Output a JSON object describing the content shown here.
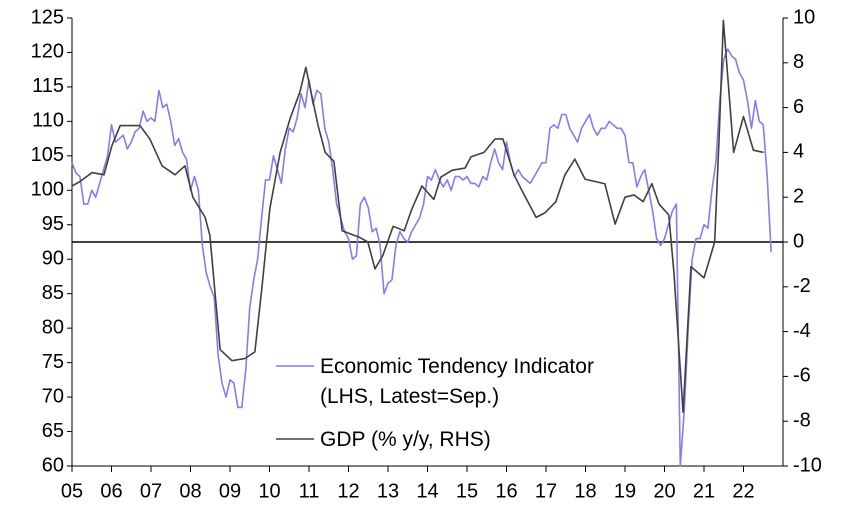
{
  "chart_data": {
    "type": "line",
    "xlim": [
      2005,
      2023
    ],
    "xticks": [
      {
        "value": 2005,
        "label": "05"
      },
      {
        "value": 2006,
        "label": "06"
      },
      {
        "value": 2007,
        "label": "07"
      },
      {
        "value": 2008,
        "label": "08"
      },
      {
        "value": 2009,
        "label": "09"
      },
      {
        "value": 2010,
        "label": "10"
      },
      {
        "value": 2011,
        "label": "11"
      },
      {
        "value": 2012,
        "label": "12"
      },
      {
        "value": 2013,
        "label": "13"
      },
      {
        "value": 2014,
        "label": "14"
      },
      {
        "value": 2015,
        "label": "15"
      },
      {
        "value": 2016,
        "label": "16"
      },
      {
        "value": 2017,
        "label": "17"
      },
      {
        "value": 2018,
        "label": "18"
      },
      {
        "value": 2019,
        "label": "19"
      },
      {
        "value": 2020,
        "label": "20"
      },
      {
        "value": 2021,
        "label": "21"
      },
      {
        "value": 2022,
        "label": "22"
      }
    ],
    "ylim": [
      60,
      125
    ],
    "yticks": [
      60,
      65,
      70,
      75,
      80,
      85,
      90,
      95,
      100,
      105,
      110,
      115,
      120,
      125
    ],
    "y2lim": [
      -10,
      10
    ],
    "y2ticks": [
      -10,
      -8,
      -6,
      -4,
      -2,
      0,
      2,
      4,
      6,
      8,
      10
    ],
    "series": [
      {
        "name": "Economic Tendency Indicator (LHS, Latest=Sep.)",
        "color": "#7f7ff0",
        "x": [
          2005,
          2005.1,
          2005.2,
          2005.3,
          2005.4,
          2005.5,
          2005.6,
          2005.7,
          2005.8,
          2005.9,
          2006,
          2006.1,
          2006.2,
          2006.3,
          2006.4,
          2006.5,
          2006.6,
          2006.7,
          2006.8,
          2006.9,
          2007,
          2007.1,
          2007.2,
          2007.3,
          2007.4,
          2007.5,
          2007.6,
          2007.7,
          2007.8,
          2007.9,
          2008,
          2008.1,
          2008.2,
          2008.3,
          2008.4,
          2008.5,
          2008.6,
          2008.7,
          2008.8,
          2008.9,
          2009,
          2009.1,
          2009.2,
          2009.3,
          2009.4,
          2009.5,
          2009.6,
          2009.7,
          2009.8,
          2009.9,
          2010,
          2010.1,
          2010.2,
          2010.3,
          2010.4,
          2010.5,
          2010.6,
          2010.7,
          2010.8,
          2010.9,
          2011,
          2011.1,
          2011.2,
          2011.3,
          2011.4,
          2011.5,
          2011.6,
          2011.7,
          2011.8,
          2011.9,
          2012,
          2012.1,
          2012.2,
          2012.3,
          2012.4,
          2012.5,
          2012.6,
          2012.7,
          2012.8,
          2012.9,
          2013,
          2013.1,
          2013.2,
          2013.3,
          2013.4,
          2013.5,
          2013.6,
          2013.7,
          2013.8,
          2013.9,
          2014,
          2014.1,
          2014.2,
          2014.3,
          2014.4,
          2014.5,
          2014.6,
          2014.7,
          2014.8,
          2014.9,
          2015,
          2015.1,
          2015.2,
          2015.3,
          2015.4,
          2015.5,
          2015.6,
          2015.7,
          2015.8,
          2015.9,
          2016,
          2016.1,
          2016.2,
          2016.3,
          2016.4,
          2016.5,
          2016.6,
          2016.7,
          2016.8,
          2016.9,
          2017,
          2017.1,
          2017.2,
          2017.3,
          2017.4,
          2017.5,
          2017.6,
          2017.7,
          2017.8,
          2017.9,
          2018,
          2018.1,
          2018.2,
          2018.3,
          2018.4,
          2018.5,
          2018.6,
          2018.7,
          2018.8,
          2018.9,
          2019,
          2019.1,
          2019.2,
          2019.3,
          2019.4,
          2019.5,
          2019.6,
          2019.7,
          2019.8,
          2019.9,
          2020,
          2020.1,
          2020.2,
          2020.3,
          2020.4,
          2020.5,
          2020.6,
          2020.7,
          2020.8,
          2020.9,
          2021,
          2021.1,
          2021.2,
          2021.3,
          2021.4,
          2021.5,
          2021.6,
          2021.7,
          2021.8,
          2021.9,
          2022,
          2022.1,
          2022.2,
          2022.3,
          2022.4,
          2022.5,
          2022.6,
          2022.7
        ],
        "values": [
          104,
          102.5,
          102,
          98,
          98,
          100,
          99,
          101,
          103,
          105,
          109.5,
          107,
          107.5,
          108,
          106,
          107,
          108.5,
          109,
          111.5,
          110,
          110.5,
          110,
          114.5,
          112,
          112.5,
          110,
          106.5,
          107.5,
          105.5,
          104.5,
          100,
          102,
          100,
          92,
          88,
          86,
          84.5,
          76,
          72,
          70,
          72.5,
          72,
          68.5,
          68.5,
          74,
          83,
          87,
          90,
          96,
          101.5,
          101.5,
          105,
          103,
          101,
          106,
          109,
          108.5,
          110.5,
          114,
          112,
          116,
          112.5,
          114.5,
          114,
          109,
          107,
          103,
          98,
          96,
          94,
          93,
          90,
          90.5,
          98,
          99,
          97.5,
          94,
          94.5,
          92,
          85,
          86.5,
          87,
          92,
          94,
          93,
          92.5,
          94,
          95,
          96,
          98,
          102,
          101.5,
          103,
          101.5,
          100.5,
          101.5,
          100,
          102,
          102,
          101.5,
          102,
          101,
          101,
          100.5,
          102,
          101.5,
          104,
          106,
          104,
          103,
          107,
          104,
          102,
          103,
          102,
          101.5,
          101,
          102,
          103,
          104,
          104,
          109,
          109.5,
          109,
          111,
          111,
          109,
          108,
          107,
          109,
          110,
          111,
          109,
          108,
          109,
          109,
          110,
          109.5,
          109,
          109,
          108,
          104,
          104,
          100.5,
          102,
          103,
          100,
          97,
          93,
          92,
          93,
          95,
          97,
          98,
          60,
          68,
          80,
          90,
          93,
          93,
          95,
          94.5,
          100,
          104,
          113,
          119,
          120.5,
          119.5,
          119,
          117,
          116,
          113,
          109,
          113,
          110,
          109.5,
          102,
          91
        ]
      },
      {
        "name": "GDP (% y/y, RHS)",
        "color": "#404040",
        "axis": "y2",
        "x": [
          2005,
          2005.2,
          2005.51,
          2005.81,
          2006.01,
          2006.22,
          2006.72,
          2006.97,
          2007.28,
          2007.61,
          2007.86,
          2008.06,
          2008.37,
          2008.49,
          2008.75,
          2009.05,
          2009.38,
          2009.63,
          2009.81,
          2010.01,
          2010.27,
          2010.52,
          2010.77,
          2010.92,
          2011.23,
          2011.41,
          2011.63,
          2011.84,
          2012.29,
          2012.49,
          2012.67,
          2012.87,
          2013.13,
          2013.41,
          2013.61,
          2013.86,
          2014.16,
          2014.34,
          2014.62,
          2014.95,
          2015.1,
          2015.43,
          2015.71,
          2015.91,
          2016.19,
          2016.39,
          2016.75,
          2016.97,
          2017.25,
          2017.48,
          2017.73,
          2017.99,
          2018.24,
          2018.49,
          2018.75,
          2019,
          2019.23,
          2019.46,
          2019.68,
          2019.86,
          2020.11,
          2020.24,
          2020.47,
          2020.67,
          2021,
          2021.27,
          2021.39,
          2021.49,
          2021.75,
          2022,
          2022.25,
          2022.51
        ],
        "values": [
          2.5,
          2.7,
          3.1,
          3.0,
          4.3,
          5.2,
          5.2,
          4.6,
          3.4,
          3.0,
          3.4,
          2.0,
          1.1,
          0.3,
          -4.8,
          -5.3,
          -5.2,
          -4.9,
          -2.0,
          1.5,
          4.0,
          5.5,
          6.7,
          7.8,
          5.2,
          4.0,
          3.6,
          0.5,
          0.2,
          0.0,
          -1.2,
          -0.6,
          0.7,
          0.5,
          1.5,
          2.5,
          1.9,
          2.9,
          3.2,
          3.3,
          3.8,
          4.0,
          4.6,
          4.6,
          3.0,
          2.3,
          1.1,
          1.3,
          1.8,
          3.0,
          3.7,
          2.8,
          2.7,
          2.6,
          0.8,
          2.0,
          2.1,
          1.8,
          2.6,
          1.7,
          1.2,
          -1.4,
          -7.6,
          -1.1,
          -1.6,
          0.0,
          5.0,
          9.9,
          4.0,
          5.6,
          4.1,
          4.0
        ]
      }
    ]
  }
}
